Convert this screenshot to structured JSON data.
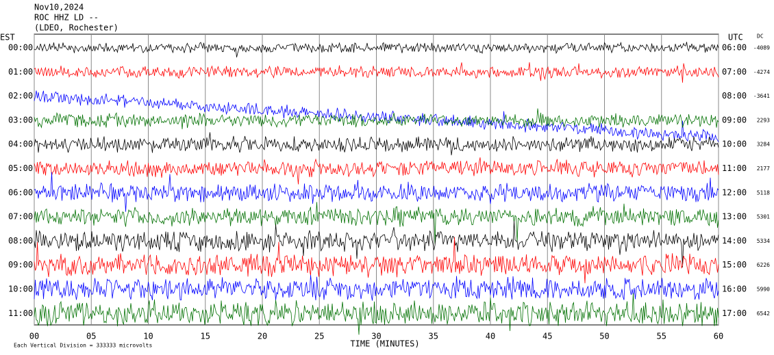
{
  "chart_data": {
    "type": "helicorder",
    "title_lines": [
      "Nov10,2024",
      "ROC HHZ LD --",
      "(LDEO, Rochester)"
    ],
    "left_axis_label": "EST",
    "right_axis_label": "UTC",
    "dc_label": "DC",
    "left_times": [
      "00:00",
      "01:00",
      "02:00",
      "03:00",
      "04:00",
      "05:00",
      "06:00",
      "07:00",
      "08:00",
      "09:00",
      "10:00",
      "11:00"
    ],
    "right_times": [
      "06:00",
      "07:00",
      "08:00",
      "09:00",
      "10:00",
      "11:00",
      "12:00",
      "13:00",
      "14:00",
      "15:00",
      "16:00",
      "17:00"
    ],
    "dc_values": [
      -4089,
      -4274,
      -3641,
      2293,
      3284,
      2177,
      5118,
      5301,
      5334,
      6226,
      5990,
      6542
    ],
    "trace_colors": [
      "#000000",
      "#ff0000",
      "#0000ff",
      "#007000"
    ],
    "xlabel": "TIME (MINUTES)",
    "xlim": [
      0,
      60
    ],
    "xticks": [
      {
        "value": 0,
        "label": "00"
      },
      {
        "value": 5,
        "label": "05"
      },
      10,
      15,
      20,
      25,
      30,
      35,
      40,
      45,
      50,
      55,
      60
    ],
    "grid": true,
    "footnote": "Each Vertical Division = 333333 microvolts"
  }
}
